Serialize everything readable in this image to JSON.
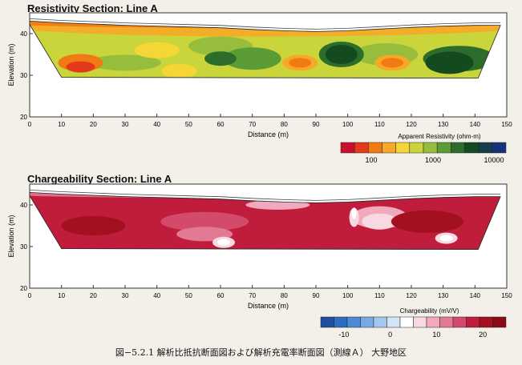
{
  "chart_data": [
    {
      "type": "heatmap",
      "title": "Resistivity Section: Line A",
      "xlabel": "Distance (m)",
      "ylabel": "Elevation (m)",
      "xlim": [
        0,
        150
      ],
      "ylim": [
        20,
        45
      ],
      "x_ticks": [
        0,
        10,
        20,
        30,
        40,
        50,
        60,
        70,
        80,
        90,
        100,
        110,
        120,
        130,
        140,
        150
      ],
      "y_ticks": [
        20,
        30,
        40
      ],
      "scale": {
        "label": "Apparent Resistivity (ohm-m)",
        "type": "log",
        "tick_labels": [
          "100",
          "1000",
          "10000"
        ],
        "colors": [
          "#c8102e",
          "#e23a1a",
          "#f07a14",
          "#f7a827",
          "#f4d736",
          "#cad53c",
          "#96be3c",
          "#5c9c36",
          "#2c6d2c",
          "#144a20",
          "#123f4a",
          "#16327a"
        ]
      },
      "anomalies": [
        {
          "label": "high resistivity zone",
          "x_range": [
            92,
            104
          ],
          "elev_range": [
            31,
            39
          ]
        },
        {
          "label": "high resistivity zone",
          "x_range": [
            123,
            141
          ],
          "elev_range": [
            29,
            37
          ]
        },
        {
          "label": "low resistivity zone",
          "x_range": [
            10,
            22
          ],
          "elev_range": [
            30,
            36
          ]
        },
        {
          "label": "low resistivity zone",
          "x_range": [
            80,
            90
          ],
          "elev_range": [
            30,
            36
          ]
        },
        {
          "label": "low resistivity zone",
          "x_range": [
            108,
            120
          ],
          "elev_range": [
            30,
            36
          ]
        }
      ]
    },
    {
      "type": "heatmap",
      "title": "Chargeability Section: Line A",
      "xlabel": "Distance (m)",
      "ylabel": "Elevation (m)",
      "xlim": [
        0,
        150
      ],
      "ylim": [
        20,
        45
      ],
      "x_ticks": [
        0,
        10,
        20,
        30,
        40,
        50,
        60,
        70,
        80,
        90,
        100,
        110,
        120,
        130,
        140,
        150
      ],
      "y_ticks": [
        20,
        30,
        40
      ],
      "scale": {
        "label": "Chargeability (mV/V)",
        "type": "linear",
        "tick_labels": [
          "-10",
          "0",
          "10",
          "20"
        ],
        "tick_values": [
          -10,
          0,
          10,
          20
        ],
        "range": [
          -15,
          25
        ],
        "colors": [
          "#1f4f9e",
          "#2e6cc0",
          "#4c8ad6",
          "#77a9e2",
          "#a4c7ee",
          "#d4e4f7",
          "#ffffff",
          "#f8d9e1",
          "#f0aabc",
          "#e37a95",
          "#d44a6a",
          "#c01c3c",
          "#a3101f",
          "#8c0a14"
        ]
      },
      "anomalies": [
        {
          "label": "low chargeability zone",
          "x_range": [
            57,
            65
          ],
          "elev_range": [
            29,
            33
          ]
        },
        {
          "label": "low chargeability zone",
          "x_range": [
            100,
            104
          ],
          "elev_range": [
            32,
            40
          ]
        },
        {
          "label": "low chargeability zone",
          "x_range": [
            127,
            135
          ],
          "elev_range": [
            30,
            34
          ]
        }
      ]
    }
  ],
  "caption": "図−5.2.1 解析比抵抗断面図および解析充電率断面図（測線Ａ） 大野地区"
}
